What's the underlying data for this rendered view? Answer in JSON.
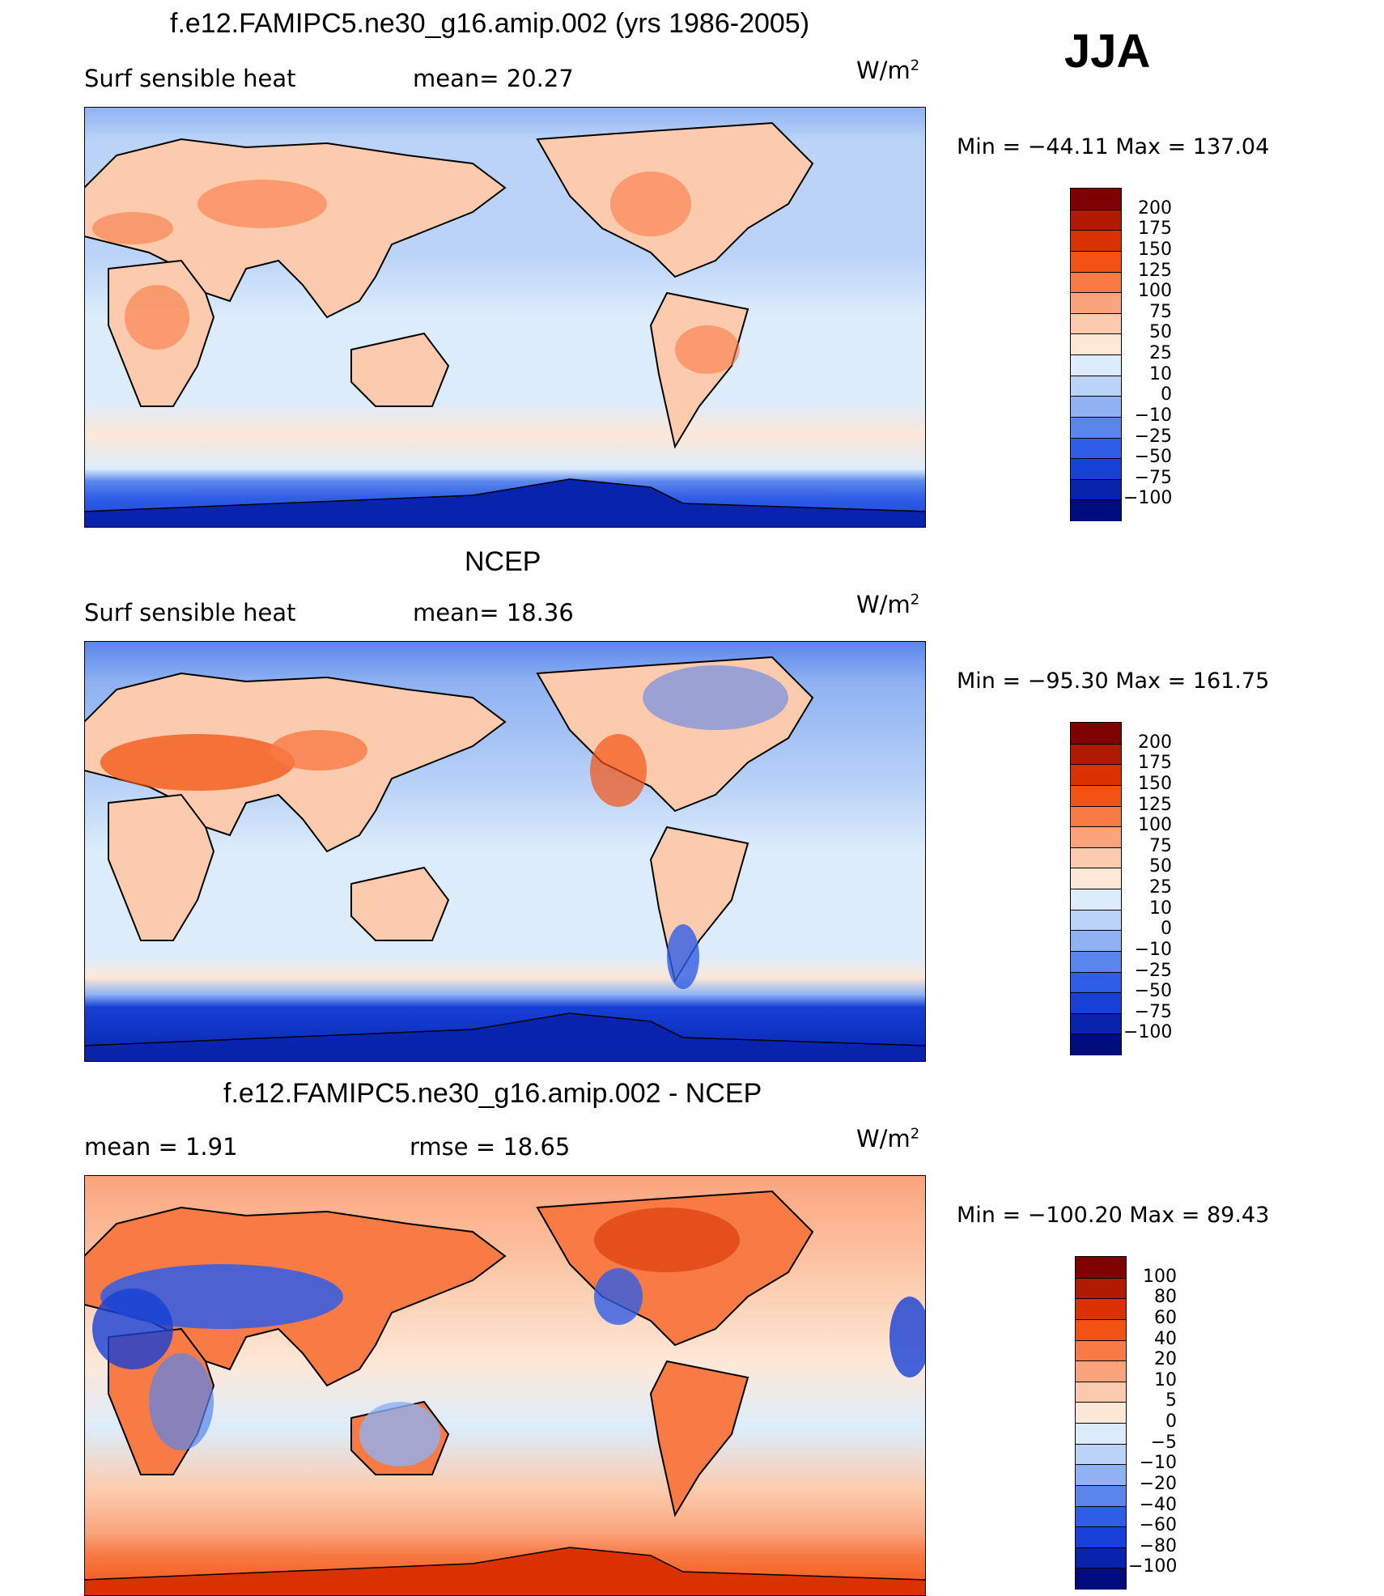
{
  "season": "JJA",
  "units_label": "W/m",
  "units_exp": "2",
  "panels": [
    {
      "title": "f.e12.FAMIPC5.ne30_g16.amip.002 (yrs 1986-2005)",
      "left_label": "Surf  sensible  heat",
      "mid_label": "mean=   20.27",
      "minmax": "Min  =  −44.11  Max  =  137.04",
      "colorbar": {
        "labels": [
          "200",
          "175",
          "150",
          "125",
          "100",
          "75",
          "50",
          "25",
          "10",
          "0",
          "−10",
          "−25",
          "−50",
          "−75",
          "−100"
        ],
        "colors": [
          "#7f0000",
          "#b01b00",
          "#d93200",
          "#f25312",
          "#f87a45",
          "#fba47c",
          "#fccbad",
          "#fde8d8",
          "#dcecfb",
          "#bad3f7",
          "#8eb2f2",
          "#5a86ec",
          "#2f5ee6",
          "#1640d6",
          "#0824ad",
          "#000c7d"
        ]
      }
    },
    {
      "title": "NCEP",
      "left_label": "Surf  sensible  heat",
      "mid_label": "mean=   18.36",
      "minmax": "Min  =  −95.30  Max  =  161.75",
      "colorbar": {
        "labels": [
          "200",
          "175",
          "150",
          "125",
          "100",
          "75",
          "50",
          "25",
          "10",
          "0",
          "−10",
          "−25",
          "−50",
          "−75",
          "−100"
        ],
        "colors": [
          "#7f0000",
          "#b01b00",
          "#d93200",
          "#f25312",
          "#f87a45",
          "#fba47c",
          "#fccbad",
          "#fde8d8",
          "#dcecfb",
          "#bad3f7",
          "#8eb2f2",
          "#5a86ec",
          "#2f5ee6",
          "#1640d6",
          "#0824ad",
          "#000c7d"
        ]
      }
    },
    {
      "title": "f.e12.FAMIPC5.ne30_g16.amip.002 - NCEP",
      "left_label": "mean  =      1.91",
      "mid_label": "rmse  =     18.65",
      "minmax": "Min  =  −100.20  Max  =    89.43",
      "colorbar": {
        "labels": [
          "100",
          "80",
          "60",
          "40",
          "20",
          "10",
          "5",
          "0",
          "−5",
          "−10",
          "−20",
          "−40",
          "−60",
          "−80",
          "−100"
        ],
        "colors": [
          "#7f0000",
          "#b01b00",
          "#d93200",
          "#f25312",
          "#f87a45",
          "#fba47c",
          "#fccbad",
          "#fde8d8",
          "#dcecfb",
          "#bad3f7",
          "#8eb2f2",
          "#5a86ec",
          "#2f5ee6",
          "#1640d6",
          "#0824ad",
          "#000c7d"
        ]
      }
    }
  ]
}
